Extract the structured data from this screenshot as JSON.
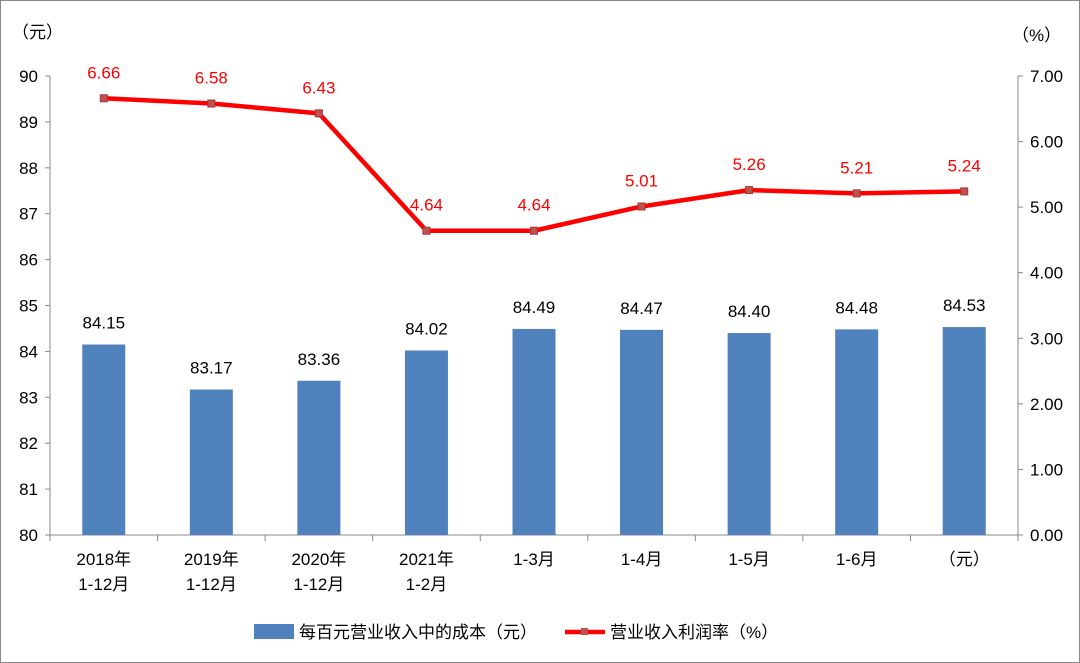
{
  "chart_data": {
    "type": "bar+line",
    "categories": [
      [
        "2018年",
        "1-12月"
      ],
      [
        "2019年",
        "1-12月"
      ],
      [
        "2020年",
        "1-12月"
      ],
      [
        "2021年",
        "1-2月"
      ],
      [
        "1-3月"
      ],
      [
        "1-4月"
      ],
      [
        "1-5月"
      ],
      [
        "1-6月"
      ],
      [
        "（元）"
      ]
    ],
    "series": [
      {
        "name": "每百元营业收入中的成本（元）",
        "type": "bar",
        "axis": "left",
        "color": "#4f81bd",
        "values": [
          84.15,
          83.17,
          83.36,
          84.02,
          84.49,
          84.47,
          84.4,
          84.48,
          84.53
        ],
        "labels": [
          "84.15",
          "83.17",
          "83.36",
          "84.02",
          "84.49",
          "84.47",
          "84.40",
          "84.48",
          "84.53"
        ]
      },
      {
        "name": "营业收入利润率（%）",
        "type": "line",
        "axis": "right",
        "color": "#ff0000",
        "values": [
          6.66,
          6.58,
          6.43,
          4.64,
          4.64,
          5.01,
          5.26,
          5.21,
          5.24
        ],
        "labels": [
          "6.66",
          "6.58",
          "6.43",
          "4.64",
          "4.64",
          "5.01",
          "5.26",
          "5.21",
          "5.24"
        ]
      }
    ],
    "left_axis": {
      "unit": "（元）",
      "ylim": [
        80,
        90
      ],
      "ticks": [
        "80",
        "81",
        "82",
        "83",
        "84",
        "85",
        "86",
        "87",
        "88",
        "89",
        "90"
      ]
    },
    "right_axis": {
      "unit": "（%）",
      "ylim": [
        0,
        7
      ],
      "ticks": [
        "0.00",
        "1.00",
        "2.00",
        "3.00",
        "4.00",
        "5.00",
        "6.00",
        "7.00"
      ]
    },
    "legend": "bottom",
    "grid": false
  }
}
